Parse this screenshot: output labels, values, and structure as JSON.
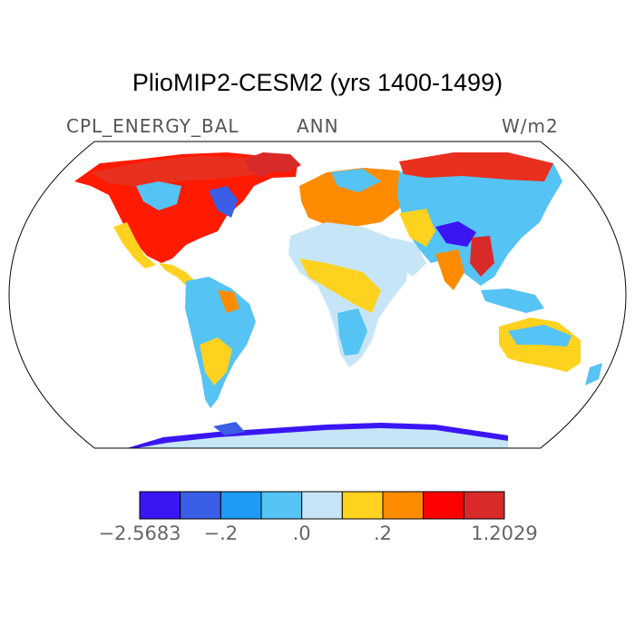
{
  "title": "PlioMIP2-CESM2 (yrs 1400-1499)",
  "subtitle_left": "CPL_ENERGY_BAL",
  "subtitle_center": "ANN",
  "subtitle_right": "W/m2",
  "colorbar": {
    "colors": [
      "#3b16f5",
      "#3a5ee6",
      "#1d9bf5",
      "#55c3f4",
      "#c6e6f7",
      "#ffd21f",
      "#ff8c00",
      "#ff0000",
      "#d92a2a"
    ],
    "labels": [
      "−2.5683",
      "−.2",
      ".0",
      ".2",
      "1.2029"
    ],
    "label_values": [
      -2.5683,
      -0.2,
      0.0,
      0.2,
      1.2029
    ]
  }
}
